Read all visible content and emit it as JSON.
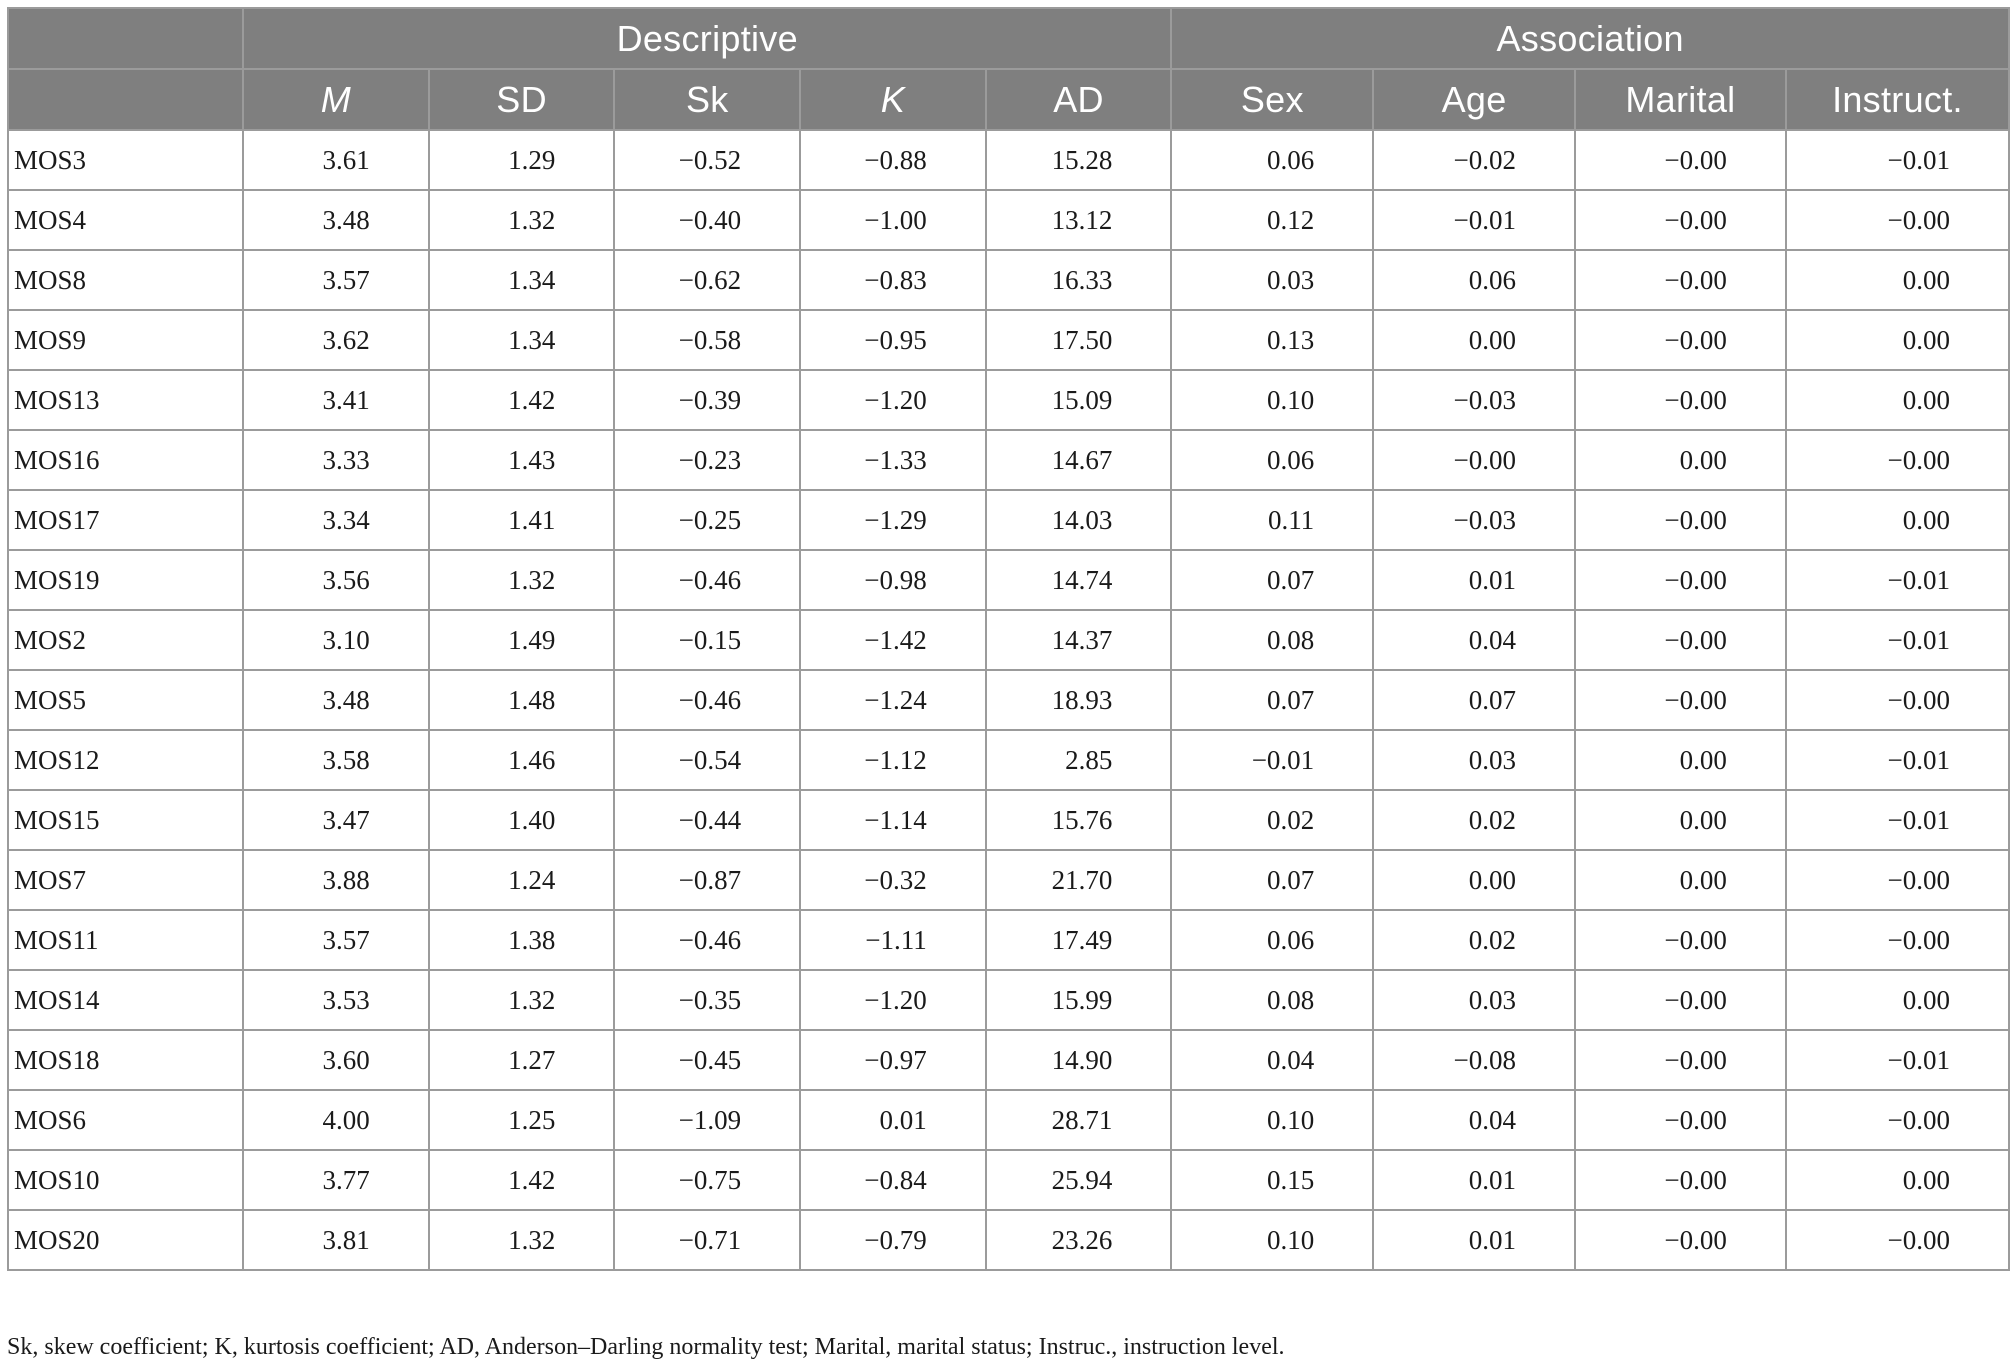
{
  "table": {
    "group_headers": [
      "",
      "Descriptive",
      "Association"
    ],
    "columns": [
      "",
      "M",
      "SD",
      "Sk",
      "K",
      "AD",
      "Sex",
      "Age",
      "Marital",
      "Instruct."
    ],
    "italic_columns": [
      "M",
      "K"
    ],
    "rows": [
      [
        "MOS3",
        "3.61",
        "1.29",
        "−0.52",
        "−0.88",
        "15.28",
        "0.06",
        "−0.02",
        "−0.00",
        "−0.01"
      ],
      [
        "MOS4",
        "3.48",
        "1.32",
        "−0.40",
        "−1.00",
        "13.12",
        "0.12",
        "−0.01",
        "−0.00",
        "−0.00"
      ],
      [
        "MOS8",
        "3.57",
        "1.34",
        "−0.62",
        "−0.83",
        "16.33",
        "0.03",
        "0.06",
        "−0.00",
        "0.00"
      ],
      [
        "MOS9",
        "3.62",
        "1.34",
        "−0.58",
        "−0.95",
        "17.50",
        "0.13",
        "0.00",
        "−0.00",
        "0.00"
      ],
      [
        "MOS13",
        "3.41",
        "1.42",
        "−0.39",
        "−1.20",
        "15.09",
        "0.10",
        "−0.03",
        "−0.00",
        "0.00"
      ],
      [
        "MOS16",
        "3.33",
        "1.43",
        "−0.23",
        "−1.33",
        "14.67",
        "0.06",
        "−0.00",
        "0.00",
        "−0.00"
      ],
      [
        "MOS17",
        "3.34",
        "1.41",
        "−0.25",
        "−1.29",
        "14.03",
        "0.11",
        "−0.03",
        "−0.00",
        "0.00"
      ],
      [
        "MOS19",
        "3.56",
        "1.32",
        "−0.46",
        "−0.98",
        "14.74",
        "0.07",
        "0.01",
        "−0.00",
        "−0.01"
      ],
      [
        "MOS2",
        "3.10",
        "1.49",
        "−0.15",
        "−1.42",
        "14.37",
        "0.08",
        "0.04",
        "−0.00",
        "−0.01"
      ],
      [
        "MOS5",
        "3.48",
        "1.48",
        "−0.46",
        "−1.24",
        "18.93",
        "0.07",
        "0.07",
        "−0.00",
        "−0.00"
      ],
      [
        "MOS12",
        "3.58",
        "1.46",
        "−0.54",
        "−1.12",
        "2.85",
        "−0.01",
        "0.03",
        "0.00",
        "−0.01"
      ],
      [
        "MOS15",
        "3.47",
        "1.40",
        "−0.44",
        "−1.14",
        "15.76",
        "0.02",
        "0.02",
        "0.00",
        "−0.01"
      ],
      [
        "MOS7",
        "3.88",
        "1.24",
        "−0.87",
        "−0.32",
        "21.70",
        "0.07",
        "0.00",
        "0.00",
        "−0.00"
      ],
      [
        "MOS11",
        "3.57",
        "1.38",
        "−0.46",
        "−1.11",
        "17.49",
        "0.06",
        "0.02",
        "−0.00",
        "−0.00"
      ],
      [
        "MOS14",
        "3.53",
        "1.32",
        "−0.35",
        "−1.20",
        "15.99",
        "0.08",
        "0.03",
        "−0.00",
        "0.00"
      ],
      [
        "MOS18",
        "3.60",
        "1.27",
        "−0.45",
        "−0.97",
        "14.90",
        "0.04",
        "−0.08",
        "−0.00",
        "−0.01"
      ],
      [
        "MOS6",
        "4.00",
        "1.25",
        "−1.09",
        "0.01",
        "28.71",
        "0.10",
        "0.04",
        "−0.00",
        "−0.00"
      ],
      [
        "MOS10",
        "3.77",
        "1.42",
        "−0.75",
        "−0.84",
        "25.94",
        "0.15",
        "0.01",
        "−0.00",
        "0.00"
      ],
      [
        "MOS20",
        "3.81",
        "1.32",
        "−0.71",
        "−0.79",
        "23.26",
        "0.10",
        "0.01",
        "−0.00",
        "−0.00"
      ]
    ],
    "footnote": "Sk, skew coefficient; K, kurtosis coefficient; AD, Anderson–Darling normality test; Marital, marital status; Instruc., instruction level."
  }
}
